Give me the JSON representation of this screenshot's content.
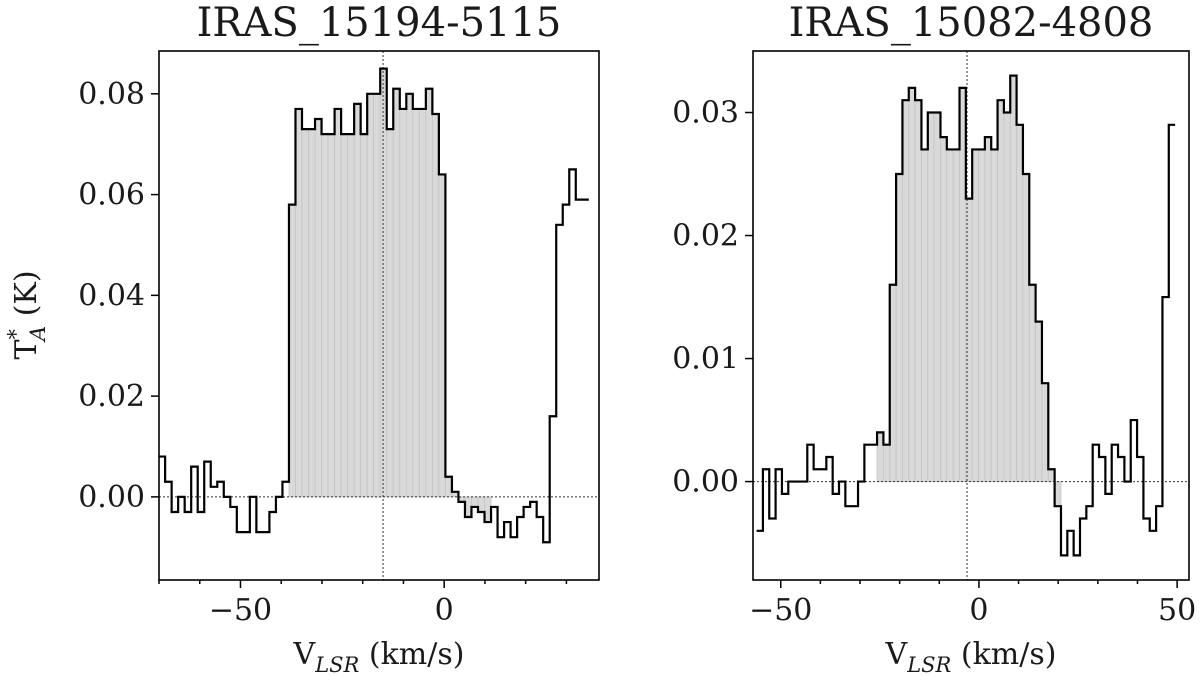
{
  "chart_data": [
    {
      "type": "line",
      "title": "IRAS_15194-5115",
      "xlabel": "V",
      "xlabel_sub": "LSR",
      "xlabel_unit": " (km/s)",
      "ylabel": "T",
      "ylabel_sup": "*",
      "ylabel_sub": "A",
      "ylabel_unit": " (K)",
      "xlim": [
        -70,
        38
      ],
      "ylim": [
        -0.0165,
        0.0885
      ],
      "xticks": [
        -50,
        0
      ],
      "xtick_labels": [
        "−50",
        "0"
      ],
      "yticks": [
        0.0,
        0.02,
        0.04,
        0.06,
        0.08
      ],
      "ytick_labels": [
        "0.00",
        "0.02",
        "0.04",
        "0.06",
        "0.08"
      ],
      "vline": -15,
      "hline": 0,
      "step_width": 1.6,
      "fill_range": [
        -38,
        12
      ],
      "series": [
        {
          "x": [
            -69.3,
            -67.7,
            -66.1,
            -64.5,
            -62.9,
            -61.3,
            -59.7,
            -58.1,
            -56.5,
            -54.9,
            -53.3,
            -51.7,
            -50.1,
            -48.5,
            -46.9,
            -45.3,
            -43.7,
            -42.1,
            -40.5,
            -38.9,
            -37.3,
            -35.7,
            -34.1,
            -32.5,
            -30.9,
            -29.3,
            -27.7,
            -26.1,
            -24.5,
            -22.9,
            -21.3,
            -19.7,
            -18.1,
            -16.5,
            -14.9,
            -13.3,
            -11.7,
            -10.1,
            -8.5,
            -6.9,
            -5.3,
            -3.7,
            -2.1,
            -0.5,
            1.1,
            2.7,
            4.3,
            5.9,
            7.5,
            9.1,
            10.7,
            12.3,
            13.9,
            15.5,
            17.1,
            18.7,
            20.3,
            21.9,
            23.5,
            25.1,
            26.7,
            28.3,
            29.9,
            31.5,
            33.1,
            34.7
          ],
          "y": [
            0.008,
            0.003,
            -0.003,
            0.0,
            -0.003,
            0.006,
            -0.003,
            0.007,
            0.002,
            0.003,
            0.0,
            -0.002,
            -0.007,
            -0.007,
            0.0,
            -0.007,
            -0.007,
            -0.003,
            0.0,
            0.003,
            0.058,
            0.077,
            0.073,
            0.073,
            0.075,
            0.072,
            0.072,
            0.077,
            0.072,
            0.072,
            0.078,
            0.072,
            0.08,
            0.08,
            0.085,
            0.073,
            0.081,
            0.077,
            0.08,
            0.077,
            0.077,
            0.081,
            0.076,
            0.064,
            0.004,
            0.001,
            -0.001,
            -0.004,
            -0.002,
            -0.003,
            -0.005,
            -0.002,
            -0.008,
            -0.005,
            -0.008,
            -0.004,
            -0.002,
            -0.001,
            -0.004,
            -0.009,
            0.016,
            0.054,
            0.058,
            0.065,
            0.059,
            0.059
          ]
        }
      ]
    },
    {
      "type": "line",
      "title": "IRAS_15082-4808",
      "xlabel": "V",
      "xlabel_sub": "LSR",
      "xlabel_unit": " (km/s)",
      "ylabel": "",
      "xlim": [
        -57,
        53
      ],
      "ylim": [
        -0.008,
        0.035
      ],
      "xticks": [
        -50,
        0,
        50
      ],
      "xtick_labels": [
        "−50",
        "0",
        "50"
      ],
      "yticks": [
        0.0,
        0.01,
        0.02,
        0.03
      ],
      "ytick_labels": [
        "0.00",
        "0.01",
        "0.02",
        "0.03"
      ],
      "vline": -3,
      "hline": 0,
      "step_width": 1.6,
      "fill_range": [
        -26,
        21
      ],
      "series": [
        {
          "x": [
            -55.3,
            -53.7,
            -52.1,
            -50.5,
            -48.9,
            -47.3,
            -45.7,
            -44.1,
            -42.5,
            -40.9,
            -39.3,
            -37.7,
            -36.1,
            -34.5,
            -32.9,
            -31.3,
            -29.7,
            -28.1,
            -26.5,
            -24.9,
            -23.3,
            -21.7,
            -20.1,
            -18.5,
            -16.9,
            -15.3,
            -13.7,
            -12.1,
            -10.5,
            -8.9,
            -7.3,
            -5.7,
            -4.1,
            -2.5,
            -0.9,
            0.7,
            2.3,
            3.9,
            5.5,
            7.1,
            8.7,
            10.3,
            11.9,
            13.5,
            15.1,
            16.7,
            18.3,
            19.9,
            21.5,
            23.1,
            24.7,
            26.3,
            27.9,
            29.5,
            31.1,
            32.7,
            34.3,
            35.9,
            37.5,
            39.1,
            40.7,
            42.3,
            43.9,
            45.5,
            47.1,
            48.7
          ],
          "y": [
            -0.004,
            0.001,
            -0.003,
            0.001,
            -0.001,
            0.0,
            0.0,
            0.0,
            0.003,
            0.001,
            0.001,
            0.002,
            -0.001,
            0.0,
            -0.002,
            -0.002,
            0.0,
            0.003,
            0.003,
            0.004,
            0.003,
            0.016,
            0.025,
            0.031,
            0.032,
            0.031,
            0.027,
            0.03,
            0.03,
            0.028,
            0.027,
            0.027,
            0.032,
            0.023,
            0.027,
            0.027,
            0.028,
            0.027,
            0.031,
            0.03,
            0.033,
            0.029,
            0.025,
            0.016,
            0.013,
            0.008,
            0.001,
            -0.002,
            -0.006,
            -0.004,
            -0.006,
            -0.003,
            -0.002,
            0.003,
            0.002,
            -0.001,
            0.003,
            0.002,
            0.0,
            0.005,
            0.002,
            -0.003,
            -0.004,
            -0.002,
            0.015,
            0.029
          ]
        }
      ]
    }
  ]
}
